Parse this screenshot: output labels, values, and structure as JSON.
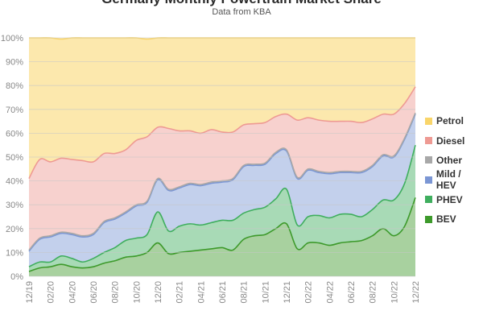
{
  "chart_data": {
    "type": "area",
    "title": "Germany Monthly Powertrain Market Share",
    "subtitle": "Data from KBA",
    "stacked": true,
    "x": [
      "12/19",
      "01/20",
      "02/20",
      "03/20",
      "04/20",
      "05/20",
      "06/20",
      "07/20",
      "08/20",
      "09/20",
      "10/20",
      "11/20",
      "12/20",
      "01/21",
      "02/21",
      "03/21",
      "04/21",
      "05/21",
      "06/21",
      "07/21",
      "08/21",
      "09/21",
      "10/21",
      "11/21",
      "12/21",
      "01/22",
      "02/22",
      "03/22",
      "04/22",
      "05/22",
      "06/22",
      "07/22",
      "08/22",
      "09/22",
      "10/22",
      "11/22",
      "12/22"
    ],
    "x_tick_labels": [
      "12/19",
      "02/20",
      "04/20",
      "06/20",
      "08/20",
      "10/20",
      "12/20",
      "02/21",
      "04/21",
      "06/21",
      "08/21",
      "10/21",
      "12/21",
      "02/22",
      "04/22",
      "06/22",
      "08/22",
      "10/22",
      "12/22"
    ],
    "y_tick_labels": [
      "0%",
      "10%",
      "20%",
      "30%",
      "40%",
      "50%",
      "60%",
      "70%",
      "80%",
      "90%",
      "100%"
    ],
    "ylim": [
      0,
      100
    ],
    "grid": true,
    "legend_position": "right",
    "series": [
      {
        "name": "BEV",
        "color": "#3d9a2b",
        "values": [
          2,
          3.5,
          4,
          5,
          4,
          3.5,
          4,
          5.5,
          6.5,
          8,
          8.5,
          10,
          14,
          9.5,
          10,
          10.5,
          11,
          11.5,
          12,
          11,
          15.5,
          17,
          17.5,
          20,
          22,
          11.5,
          14,
          14,
          13,
          14,
          14.5,
          15,
          17,
          20,
          17,
          21,
          33
        ]
      },
      {
        "name": "PHEV",
        "color": "#3fae5e",
        "values": [
          2,
          2.5,
          2,
          3.5,
          3.5,
          2.5,
          3.5,
          4.5,
          5.5,
          7,
          7.5,
          7.5,
          13,
          9.5,
          11,
          11.5,
          10.5,
          11,
          11.5,
          12.5,
          11,
          11,
          11.5,
          12.5,
          14.5,
          10,
          11,
          11.5,
          11.5,
          12,
          11.5,
          10,
          11,
          12,
          15,
          18,
          22
        ]
      },
      {
        "name": "Mild / HEV",
        "color": "#7b96d4",
        "values": [
          6.5,
          9.5,
          10.5,
          9.5,
          10,
          10.5,
          10,
          12.5,
          12,
          11.5,
          13.5,
          13.5,
          13.5,
          17,
          16,
          16.5,
          16.5,
          16.5,
          16,
          17,
          19.5,
          18.5,
          18,
          19,
          16,
          19.5,
          19.5,
          18,
          18.5,
          17.5,
          17.5,
          18.5,
          18,
          18.5,
          18,
          18.5,
          13
        ]
      },
      {
        "name": "Other",
        "color": "#a8a8a8",
        "values": [
          0.5,
          0.5,
          0.5,
          0.5,
          0.5,
          0.5,
          0.5,
          0.5,
          0.5,
          0.5,
          0.5,
          0.5,
          0.5,
          0.5,
          0.5,
          0.5,
          0.5,
          0.5,
          0.5,
          0.5,
          0.5,
          0.5,
          0.5,
          0.5,
          0.5,
          0.5,
          0.5,
          0.5,
          0.5,
          0.5,
          0.5,
          0.5,
          0.5,
          0.5,
          0.5,
          0.5,
          0.5
        ]
      },
      {
        "name": "Diesel",
        "color": "#ee9a93",
        "values": [
          30,
          33,
          31,
          31,
          31,
          31.5,
          30,
          28.5,
          27,
          26,
          27,
          27,
          21.5,
          25.5,
          23.5,
          22,
          21.5,
          22,
          20.5,
          19.5,
          17,
          17,
          17,
          15,
          15,
          24,
          21.5,
          21.5,
          21.5,
          21,
          21,
          20.5,
          19.5,
          17,
          17.5,
          14.5,
          11
        ]
      },
      {
        "name": "Petrol",
        "color": "#f9d56a",
        "values": [
          59,
          51,
          52,
          50,
          51,
          51.5,
          52,
          48.5,
          48.5,
          47,
          43,
          41,
          37.5,
          38,
          39,
          39,
          40,
          38.5,
          39.5,
          39.5,
          36.5,
          36,
          35.5,
          33,
          32,
          34.5,
          33.5,
          34.5,
          35,
          35,
          35,
          35.5,
          34,
          32,
          32,
          27.5,
          20.5
        ]
      }
    ]
  }
}
